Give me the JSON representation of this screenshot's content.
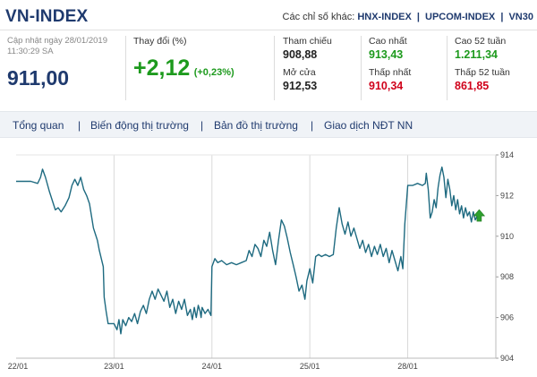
{
  "header": {
    "title": "VN-INDEX",
    "others_label": "Các chỉ số khác:",
    "other_links": [
      "HNX-INDEX",
      "UPCOM-INDEX",
      "VN30"
    ]
  },
  "summary": {
    "update_label": "Cập nhật ngày 28/01/2019",
    "update_time": "11:30:29 SA",
    "price": "911,00",
    "change_label": "Thay đổi (%)",
    "change": "+2,12",
    "change_pct": "(+0,23%)",
    "reference_label": "Tham chiếu",
    "reference": "908,88",
    "open_label": "Mở cửa",
    "open": "912,53",
    "high_label": "Cao nhất",
    "high": "913,43",
    "low_label": "Thấp nhất",
    "low": "910,34",
    "high52_label": "Cao 52 tuần",
    "high52": "1.211,34",
    "low52_label": "Thấp 52 tuần",
    "low52": "861,85"
  },
  "tabs": [
    "Tổng quan",
    "Biến động thị trường",
    "Bản đồ thị trường",
    "Giao dịch NĐT NN"
  ],
  "colors": {
    "line": "#1e6a80",
    "marker": "#2ea02e",
    "grid": "#d9d9d9",
    "up": "#1d9a1d",
    "down": "#d0021b",
    "brand": "#1f3a6e"
  },
  "chart_data": {
    "type": "line",
    "x_ticks": [
      "22/01",
      "23/01",
      "24/01",
      "25/01",
      "28/01"
    ],
    "y_ticks": [
      "904",
      "906",
      "908",
      "910",
      "912",
      "914"
    ],
    "ylim": [
      904,
      914
    ],
    "xlim": [
      0,
      4.9
    ],
    "series": [
      {
        "points": [
          [
            0.0,
            912.7
          ],
          [
            0.15,
            912.7
          ],
          [
            0.22,
            912.6
          ],
          [
            0.25,
            912.9
          ],
          [
            0.27,
            913.3
          ],
          [
            0.3,
            912.9
          ],
          [
            0.34,
            912.2
          ],
          [
            0.38,
            911.6
          ],
          [
            0.4,
            911.3
          ],
          [
            0.43,
            911.4
          ],
          [
            0.46,
            911.2
          ],
          [
            0.5,
            911.5
          ],
          [
            0.54,
            911.9
          ],
          [
            0.57,
            912.5
          ],
          [
            0.6,
            912.8
          ],
          [
            0.63,
            912.5
          ],
          [
            0.66,
            912.9
          ],
          [
            0.69,
            912.3
          ],
          [
            0.72,
            912.0
          ],
          [
            0.75,
            911.6
          ],
          [
            0.77,
            911.0
          ],
          [
            0.79,
            910.4
          ],
          [
            0.81,
            910.1
          ],
          [
            0.83,
            909.8
          ],
          [
            0.85,
            909.3
          ],
          [
            0.87,
            908.9
          ],
          [
            0.89,
            908.5
          ],
          [
            0.9,
            907.0
          ],
          [
            0.92,
            906.3
          ],
          [
            0.94,
            905.7
          ],
          [
            0.97,
            905.7
          ],
          [
            1.0,
            905.7
          ],
          [
            1.03,
            905.4
          ],
          [
            1.05,
            905.9
          ],
          [
            1.07,
            905.2
          ],
          [
            1.09,
            905.9
          ],
          [
            1.12,
            905.6
          ],
          [
            1.15,
            906.0
          ],
          [
            1.18,
            905.8
          ],
          [
            1.21,
            906.2
          ],
          [
            1.24,
            905.7
          ],
          [
            1.27,
            906.3
          ],
          [
            1.3,
            906.6
          ],
          [
            1.33,
            906.2
          ],
          [
            1.36,
            906.9
          ],
          [
            1.39,
            907.3
          ],
          [
            1.42,
            906.9
          ],
          [
            1.45,
            907.4
          ],
          [
            1.48,
            907.1
          ],
          [
            1.51,
            906.8
          ],
          [
            1.54,
            907.3
          ],
          [
            1.57,
            906.5
          ],
          [
            1.6,
            906.9
          ],
          [
            1.63,
            906.2
          ],
          [
            1.66,
            906.8
          ],
          [
            1.69,
            906.4
          ],
          [
            1.72,
            906.9
          ],
          [
            1.75,
            906.1
          ],
          [
            1.78,
            906.4
          ],
          [
            1.8,
            905.9
          ],
          [
            1.82,
            906.5
          ],
          [
            1.84,
            906.0
          ],
          [
            1.86,
            906.6
          ],
          [
            1.88,
            906.3
          ],
          [
            1.89,
            906.0
          ],
          [
            1.9,
            906.5
          ],
          [
            1.93,
            906.2
          ],
          [
            1.96,
            906.4
          ],
          [
            1.99,
            906.1
          ],
          [
            2.0,
            908.5
          ],
          [
            2.03,
            908.9
          ],
          [
            2.06,
            908.7
          ],
          [
            2.1,
            908.8
          ],
          [
            2.15,
            908.6
          ],
          [
            2.2,
            908.7
          ],
          [
            2.25,
            908.6
          ],
          [
            2.3,
            908.7
          ],
          [
            2.35,
            908.8
          ],
          [
            2.38,
            909.3
          ],
          [
            2.41,
            909.0
          ],
          [
            2.44,
            909.6
          ],
          [
            2.47,
            909.4
          ],
          [
            2.5,
            909.0
          ],
          [
            2.53,
            909.8
          ],
          [
            2.56,
            909.5
          ],
          [
            2.59,
            910.2
          ],
          [
            2.62,
            909.3
          ],
          [
            2.65,
            908.6
          ],
          [
            2.68,
            909.8
          ],
          [
            2.71,
            910.8
          ],
          [
            2.74,
            910.5
          ],
          [
            2.77,
            909.9
          ],
          [
            2.8,
            909.2
          ],
          [
            2.83,
            908.6
          ],
          [
            2.86,
            908.0
          ],
          [
            2.89,
            907.3
          ],
          [
            2.92,
            907.6
          ],
          [
            2.95,
            906.9
          ],
          [
            2.97,
            907.8
          ],
          [
            3.0,
            908.4
          ],
          [
            3.03,
            907.7
          ],
          [
            3.06,
            909.0
          ],
          [
            3.09,
            909.1
          ],
          [
            3.12,
            909.0
          ],
          [
            3.16,
            909.1
          ],
          [
            3.2,
            909.0
          ],
          [
            3.24,
            909.1
          ],
          [
            3.27,
            910.4
          ],
          [
            3.3,
            911.4
          ],
          [
            3.33,
            910.6
          ],
          [
            3.36,
            910.1
          ],
          [
            3.39,
            910.7
          ],
          [
            3.42,
            910.0
          ],
          [
            3.45,
            910.4
          ],
          [
            3.48,
            909.9
          ],
          [
            3.51,
            909.4
          ],
          [
            3.54,
            909.8
          ],
          [
            3.57,
            909.2
          ],
          [
            3.6,
            909.6
          ],
          [
            3.63,
            909.0
          ],
          [
            3.66,
            909.5
          ],
          [
            3.69,
            909.1
          ],
          [
            3.72,
            909.6
          ],
          [
            3.75,
            909.0
          ],
          [
            3.78,
            909.4
          ],
          [
            3.81,
            908.7
          ],
          [
            3.84,
            909.3
          ],
          [
            3.87,
            908.8
          ],
          [
            3.9,
            908.3
          ],
          [
            3.93,
            909.0
          ],
          [
            3.95,
            908.4
          ],
          [
            3.97,
            910.6
          ],
          [
            4.0,
            912.5
          ],
          [
            4.05,
            912.5
          ],
          [
            4.1,
            912.6
          ],
          [
            4.15,
            912.5
          ],
          [
            4.18,
            912.6
          ],
          [
            4.19,
            913.1
          ],
          [
            4.21,
            912.3
          ],
          [
            4.23,
            910.9
          ],
          [
            4.25,
            911.2
          ],
          [
            4.27,
            911.8
          ],
          [
            4.29,
            911.4
          ],
          [
            4.31,
            912.4
          ],
          [
            4.33,
            913.0
          ],
          [
            4.35,
            913.4
          ],
          [
            4.37,
            912.9
          ],
          [
            4.39,
            911.9
          ],
          [
            4.41,
            912.8
          ],
          [
            4.43,
            912.3
          ],
          [
            4.45,
            911.5
          ],
          [
            4.47,
            912.0
          ],
          [
            4.49,
            911.3
          ],
          [
            4.51,
            911.8
          ],
          [
            4.53,
            911.1
          ],
          [
            4.55,
            911.5
          ],
          [
            4.57,
            910.9
          ],
          [
            4.59,
            911.4
          ],
          [
            4.61,
            911.0
          ],
          [
            4.63,
            911.2
          ],
          [
            4.65,
            910.7
          ],
          [
            4.67,
            911.2
          ],
          [
            4.69,
            910.8
          ],
          [
            4.71,
            911.0
          ],
          [
            4.73,
            911.0
          ]
        ]
      }
    ],
    "marker": {
      "x": 4.73,
      "y": 911.0,
      "shape": "up-arrow"
    }
  }
}
